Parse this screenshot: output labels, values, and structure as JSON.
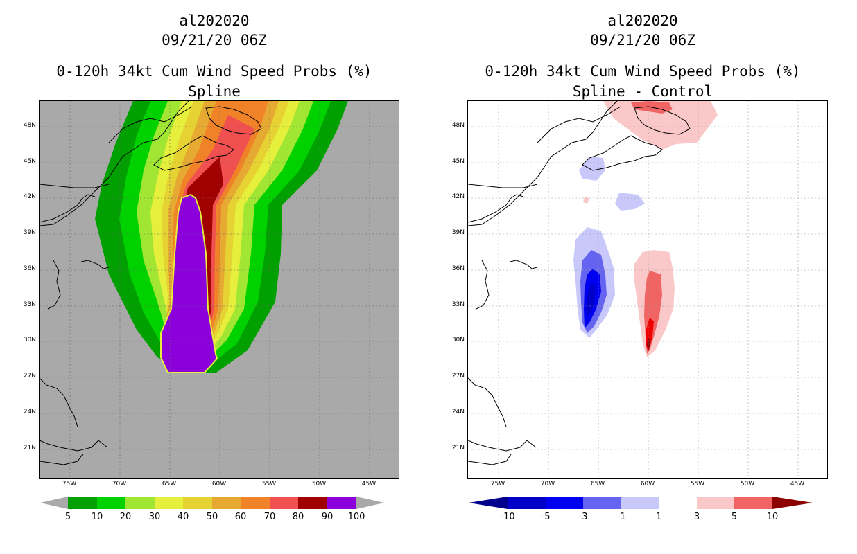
{
  "left_panel": {
    "title_line1": "al202020",
    "title_line2": "09/21/20 06Z",
    "title_line3": "0-120h 34kt Cum Wind Speed Probs (%)",
    "title_line4": "Spline",
    "lat_labels": [
      "48N",
      "45N",
      "42N",
      "39N",
      "36N",
      "33N",
      "30N",
      "27N",
      "24N",
      "21N"
    ],
    "lon_labels": [
      "75W",
      "70W",
      "65W",
      "60W",
      "55W",
      "50W",
      "45W"
    ],
    "colorbar_labels": [
      "5",
      "10",
      "20",
      "30",
      "40",
      "50",
      "60",
      "70",
      "80",
      "90",
      "100"
    ],
    "colorbar_colors": [
      "#00a000",
      "#00d200",
      "#a0e632",
      "#e6f03c",
      "#e6d232",
      "#e6aa32",
      "#f08228",
      "#f05050",
      "#a00000",
      "#8c00dc"
    ]
  },
  "right_panel": {
    "title_line1": "al202020",
    "title_line2": "09/21/20 06Z",
    "title_line3": "0-120h 34kt Cum Wind Speed Probs (%)",
    "title_line4": "Spline - Control",
    "lat_labels": [
      "48N",
      "45N",
      "42N",
      "39N",
      "36N",
      "33N",
      "30N",
      "27N",
      "24N",
      "21N"
    ],
    "lon_labels": [
      "75W",
      "70W",
      "65W",
      "60W",
      "55W",
      "50W",
      "45W"
    ],
    "colorbar_labels": [
      "-10",
      "-5",
      "-3",
      "-1",
      "1",
      "3",
      "5",
      "10"
    ],
    "colorbar_colors": [
      "#0000c8",
      "#0000f0",
      "#6464f0",
      "#c8c8fa",
      "#ffffff",
      "#fac8c8",
      "#f06464",
      "#f00000"
    ],
    "colorbar_end_colors": [
      "#00008c",
      "#8c0000"
    ]
  }
}
